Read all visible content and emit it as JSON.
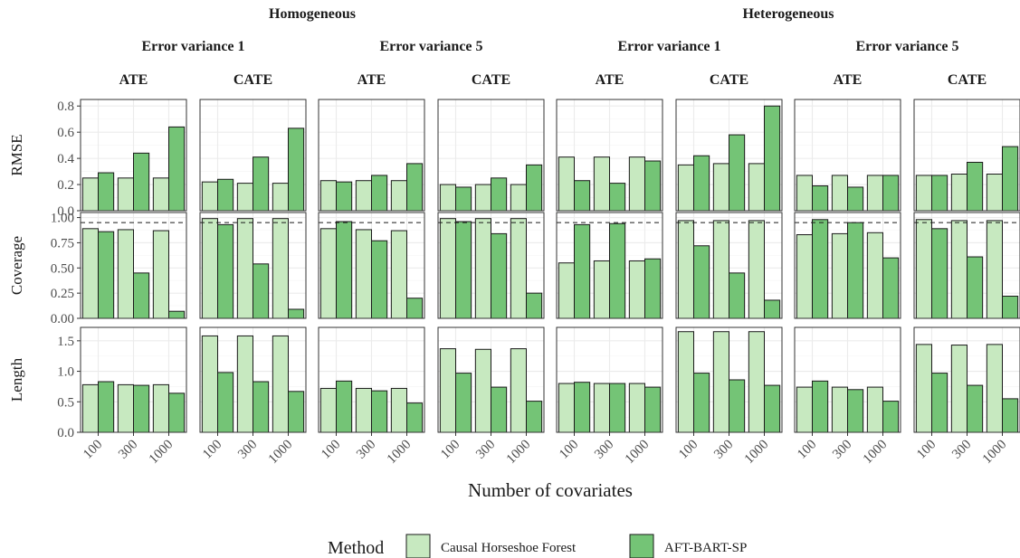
{
  "chart_data": {
    "type": "bar",
    "xlabel": "Number of covariates",
    "categories": [
      "100",
      "300",
      "1000"
    ],
    "legend": {
      "title": "Method",
      "position": "bottom",
      "entries": [
        "Causal Horseshoe Forest",
        "AFT-BART-SP"
      ]
    },
    "colors": {
      "Causal Horseshoe Forest": "#c7e9c0",
      "AFT-BART-SP": "#74c476"
    },
    "facet_columns": {
      "level1": [
        "Homogeneous",
        "Heterogeneous"
      ],
      "level2": [
        "Error variance 1",
        "Error variance 5"
      ],
      "level3": [
        "ATE",
        "CATE"
      ]
    },
    "columns": [
      {
        "effect": "Homogeneous",
        "variance": "Error variance 1",
        "estimand": "ATE"
      },
      {
        "effect": "Homogeneous",
        "variance": "Error variance 1",
        "estimand": "CATE"
      },
      {
        "effect": "Homogeneous",
        "variance": "Error variance 5",
        "estimand": "ATE"
      },
      {
        "effect": "Homogeneous",
        "variance": "Error variance 5",
        "estimand": "CATE"
      },
      {
        "effect": "Heterogeneous",
        "variance": "Error variance 1",
        "estimand": "ATE"
      },
      {
        "effect": "Heterogeneous",
        "variance": "Error variance 1",
        "estimand": "CATE"
      },
      {
        "effect": "Heterogeneous",
        "variance": "Error variance 5",
        "estimand": "ATE"
      },
      {
        "effect": "Heterogeneous",
        "variance": "Error variance 5",
        "estimand": "CATE"
      }
    ],
    "rows": [
      {
        "metric": "RMSE",
        "ylim": [
          0,
          0.85
        ],
        "yticks": [
          0.0,
          0.2,
          0.4,
          0.6,
          0.8
        ],
        "ytick_labels": [
          "0.0",
          "0.2",
          "0.4",
          "0.6",
          "0.8"
        ],
        "reference_line": null,
        "series": [
          {
            "name": "Causal Horseshoe Forest",
            "values": [
              [
                0.25,
                0.25,
                0.25
              ],
              [
                0.22,
                0.21,
                0.21
              ],
              [
                0.23,
                0.23,
                0.23
              ],
              [
                0.2,
                0.2,
                0.2
              ],
              [
                0.41,
                0.41,
                0.41
              ],
              [
                0.35,
                0.36,
                0.36
              ],
              [
                0.27,
                0.27,
                0.27
              ],
              [
                0.27,
                0.28,
                0.28
              ]
            ]
          },
          {
            "name": "AFT-BART-SP",
            "values": [
              [
                0.29,
                0.44,
                0.64
              ],
              [
                0.24,
                0.41,
                0.63
              ],
              [
                0.22,
                0.27,
                0.36
              ],
              [
                0.18,
                0.25,
                0.35
              ],
              [
                0.23,
                0.21,
                0.38
              ],
              [
                0.42,
                0.58,
                0.8
              ],
              [
                0.19,
                0.18,
                0.27
              ],
              [
                0.27,
                0.37,
                0.49
              ]
            ]
          }
        ]
      },
      {
        "metric": "Coverage",
        "ylim": [
          0,
          1.05
        ],
        "yticks": [
          0.0,
          0.25,
          0.5,
          0.75,
          1.0
        ],
        "ytick_labels": [
          "0.00",
          "0.25",
          "0.50",
          "0.75",
          "1.00"
        ],
        "reference_line": 0.95,
        "series": [
          {
            "name": "Causal Horseshoe Forest",
            "values": [
              [
                0.89,
                0.88,
                0.87
              ],
              [
                0.99,
                0.99,
                0.99
              ],
              [
                0.89,
                0.88,
                0.87
              ],
              [
                0.99,
                0.99,
                0.99
              ],
              [
                0.55,
                0.57,
                0.57
              ],
              [
                0.97,
                0.97,
                0.97
              ],
              [
                0.83,
                0.84,
                0.85
              ],
              [
                0.98,
                0.97,
                0.97
              ]
            ]
          },
          {
            "name": "AFT-BART-SP",
            "values": [
              [
                0.86,
                0.45,
                0.07
              ],
              [
                0.93,
                0.54,
                0.09
              ],
              [
                0.96,
                0.77,
                0.2
              ],
              [
                0.96,
                0.84,
                0.25
              ],
              [
                0.93,
                0.94,
                0.59
              ],
              [
                0.72,
                0.45,
                0.18
              ],
              [
                0.98,
                0.95,
                0.6
              ],
              [
                0.89,
                0.61,
                0.22
              ]
            ]
          }
        ]
      },
      {
        "metric": "Length",
        "ylim": [
          0,
          1.72
        ],
        "yticks": [
          0.0,
          0.5,
          1.0,
          1.5
        ],
        "ytick_labels": [
          "0.0",
          "0.5",
          "1.0",
          "1.5"
        ],
        "reference_line": null,
        "series": [
          {
            "name": "Causal Horseshoe Forest",
            "values": [
              [
                0.78,
                0.78,
                0.78
              ],
              [
                1.58,
                1.58,
                1.58
              ],
              [
                0.72,
                0.72,
                0.72
              ],
              [
                1.37,
                1.36,
                1.37
              ],
              [
                0.8,
                0.8,
                0.8
              ],
              [
                1.65,
                1.65,
                1.65
              ],
              [
                0.74,
                0.74,
                0.74
              ],
              [
                1.44,
                1.43,
                1.44
              ]
            ]
          },
          {
            "name": "AFT-BART-SP",
            "values": [
              [
                0.83,
                0.77,
                0.64
              ],
              [
                0.98,
                0.83,
                0.67
              ],
              [
                0.84,
                0.68,
                0.48
              ],
              [
                0.97,
                0.74,
                0.51
              ],
              [
                0.82,
                0.8,
                0.74
              ],
              [
                0.97,
                0.86,
                0.77
              ],
              [
                0.84,
                0.7,
                0.51
              ],
              [
                0.97,
                0.77,
                0.55
              ]
            ]
          }
        ]
      }
    ]
  }
}
